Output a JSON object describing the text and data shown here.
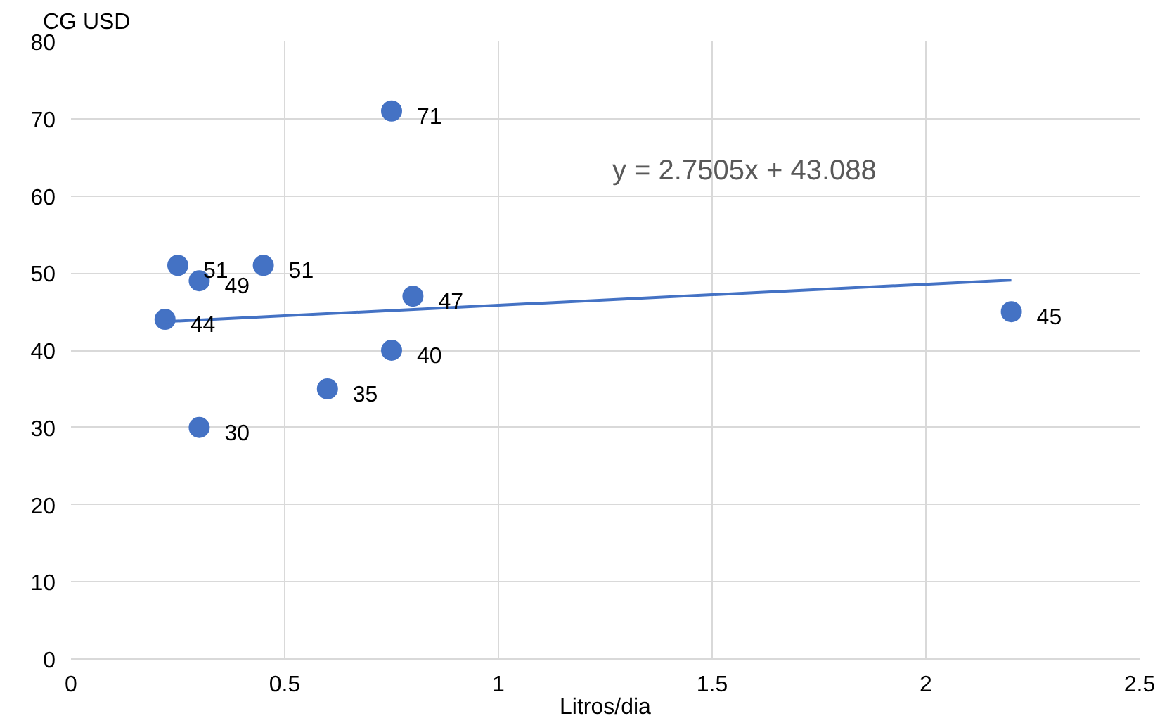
{
  "chart_data": {
    "type": "scatter",
    "xlabel": "Litros/dia",
    "ylabel": "CG USD",
    "xlim": [
      0,
      2.5
    ],
    "ylim": [
      0,
      80
    ],
    "xticks": [
      0,
      0.5,
      1,
      1.5,
      2,
      2.5
    ],
    "yticks": [
      0,
      10,
      20,
      30,
      40,
      50,
      60,
      70,
      80
    ],
    "grid": true,
    "series": [
      {
        "color": "#4472c4",
        "marker": "circle",
        "x": [
          0.22,
          0.25,
          0.3,
          0.3,
          0.45,
          0.6,
          0.75,
          0.75,
          0.8,
          2.2
        ],
        "values": [
          44,
          51,
          49,
          30,
          51,
          35,
          71,
          40,
          47,
          45
        ],
        "value_labels": [
          "44",
          "51",
          "49",
          "30",
          "51",
          "35",
          "71",
          "40",
          "47",
          "45"
        ]
      },
      {
        "type": "line",
        "marker": "none",
        "color": "#4472c4",
        "x": [
          0.22,
          2.2
        ],
        "values": [
          43.7,
          49.1
        ]
      }
    ],
    "annotations": [
      "y = 2.7505x + 43.088"
    ]
  }
}
